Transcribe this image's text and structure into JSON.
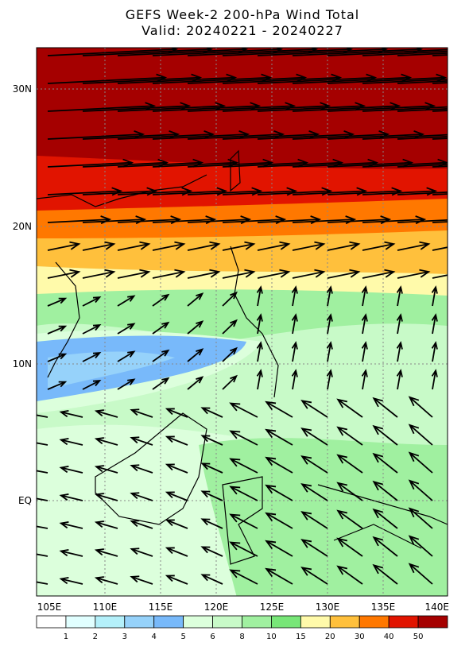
{
  "header": {
    "title": "GEFS Week-2 200-hPa Wind Total",
    "subtitle": "Valid: 20240221 - 20240227"
  },
  "map": {
    "lat_labels": [
      "30N",
      "20N",
      "10N",
      "EQ"
    ],
    "lon_labels": [
      "105E",
      "110E",
      "115E",
      "120E",
      "125E",
      "130E",
      "135E",
      "140E"
    ]
  },
  "colorbar": {
    "labels": [
      "1",
      "2",
      "3",
      "4",
      "5",
      "6",
      "8",
      "10",
      "15",
      "20",
      "30",
      "40",
      "50"
    ],
    "colors": [
      "#ffffff",
      "#e1ffff",
      "#b4f0fa",
      "#96d2fa",
      "#78b9fa",
      "#dcffdc",
      "#c8fac8",
      "#a0f0a0",
      "#78e678",
      "#fffaaa",
      "#ffc03c",
      "#ff7800",
      "#e11400",
      "#a50000"
    ]
  }
}
